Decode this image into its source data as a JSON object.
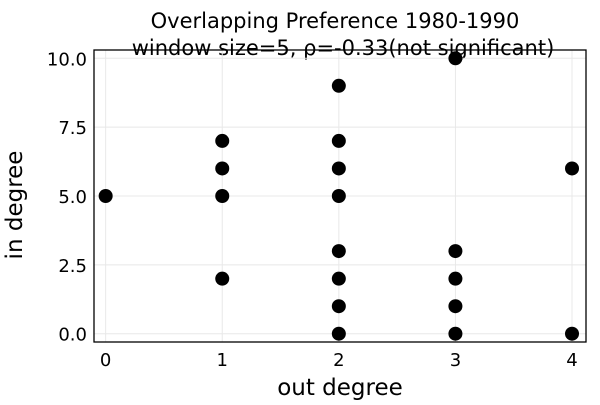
{
  "chart_data": {
    "type": "scatter",
    "title": "Overlapping Preference 1980-1990",
    "subtitle": "window size=5, ρ=-0.33(not significant)",
    "xlabel": "out degree",
    "ylabel": "in degree",
    "xlim": [
      -0.1,
      4.12
    ],
    "ylim": [
      -0.3,
      10.3
    ],
    "x_ticks": [
      0,
      1,
      2,
      3,
      4
    ],
    "x_tick_labels": [
      "0",
      "1",
      "2",
      "3",
      "4"
    ],
    "y_ticks": [
      0,
      2.5,
      5,
      7.5,
      10
    ],
    "y_tick_labels": [
      "0.0",
      "2.5",
      "5.0",
      "7.5",
      "10.0"
    ],
    "grid": true,
    "legend": "none",
    "marker_color": "#000000",
    "points": [
      {
        "x": 0,
        "y": 5
      },
      {
        "x": 1,
        "y": 7
      },
      {
        "x": 1,
        "y": 6
      },
      {
        "x": 1,
        "y": 5
      },
      {
        "x": 1,
        "y": 2
      },
      {
        "x": 2,
        "y": 9
      },
      {
        "x": 2,
        "y": 7
      },
      {
        "x": 2,
        "y": 6
      },
      {
        "x": 2,
        "y": 5
      },
      {
        "x": 2,
        "y": 3
      },
      {
        "x": 2,
        "y": 2
      },
      {
        "x": 2,
        "y": 1
      },
      {
        "x": 2,
        "y": 0
      },
      {
        "x": 3,
        "y": 10
      },
      {
        "x": 3,
        "y": 3
      },
      {
        "x": 3,
        "y": 2
      },
      {
        "x": 3,
        "y": 1
      },
      {
        "x": 3,
        "y": 0
      },
      {
        "x": 4,
        "y": 6
      },
      {
        "x": 4,
        "y": 0
      }
    ]
  }
}
